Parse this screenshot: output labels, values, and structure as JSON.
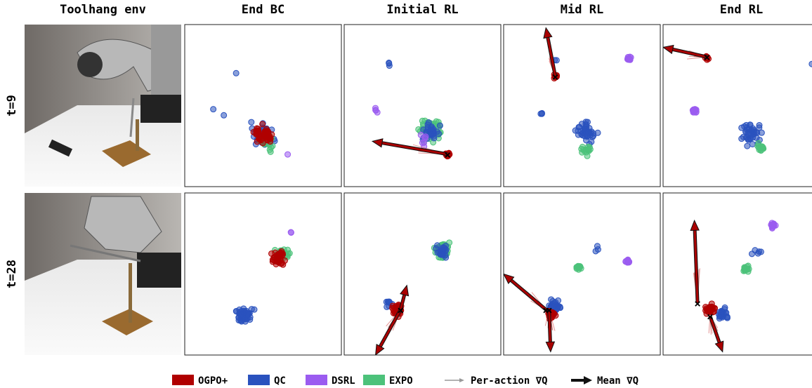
{
  "columns": [
    "Toolhang env",
    "End BC",
    "Initial RL",
    "Mid RL",
    "End RL"
  ],
  "rows": [
    "t=9",
    "t=28"
  ],
  "legend": [
    {
      "label": "OGPO+",
      "color": "#b00000"
    },
    {
      "label": "QC",
      "color": "#2a52be"
    },
    {
      "label": "DSRL",
      "color": "#9b5cf0"
    },
    {
      "label": "EXPO",
      "color": "#4cc27a"
    },
    {
      "label": "Per-action ∇Q",
      "color": "#999999"
    },
    {
      "label": "Mean ∇Q",
      "color": "#111111"
    }
  ]
}
